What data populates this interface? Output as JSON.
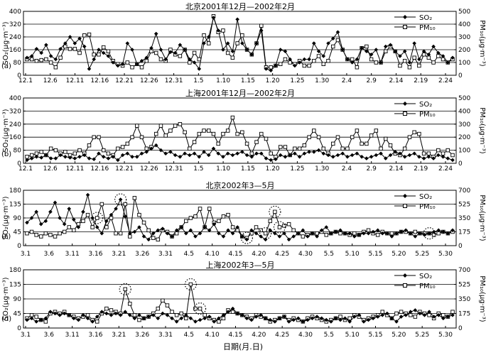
{
  "figure": {
    "xlabel": "日期(月.日)"
  },
  "chart_data": [
    {
      "type": "line",
      "panel_label": "(a)",
      "title": "北京2001年12月—2002年2月",
      "ylabel_left": "SO₂(μg·m⁻³)",
      "ylabel_right": "PM₁₀(μg·m⁻³)",
      "ylim_left": [
        0,
        400
      ],
      "yticks_left": [
        0,
        80,
        160,
        240,
        320,
        400
      ],
      "ylim_right": [
        0,
        500
      ],
      "yticks_right": [
        0,
        100,
        200,
        300,
        400,
        500
      ],
      "x_ticklabels": [
        "12.1",
        "12.6",
        "12.11",
        "12.16",
        "12.21",
        "12.26",
        "12.31",
        "1.5",
        "1.10",
        "1.15",
        "1.20",
        "1.25",
        "1.30",
        "2.4",
        "2.9",
        "2.14",
        "2.19",
        "2.24"
      ],
      "legend": {
        "position": "top-right",
        "entries": [
          "SO₂",
          "PM₁₀"
        ]
      },
      "series": [
        {
          "name": "SO₂",
          "axis": "left",
          "marker": "diamond-filled",
          "values": [
            110,
            120,
            165,
            140,
            190,
            120,
            100,
            165,
            200,
            240,
            200,
            230,
            180,
            40,
            100,
            160,
            140,
            120,
            80,
            60,
            70,
            200,
            160,
            70,
            90,
            110,
            170,
            260,
            160,
            100,
            145,
            140,
            190,
            160,
            100,
            80,
            40,
            200,
            240,
            360,
            280,
            160,
            200,
            150,
            350,
            200,
            160,
            130,
            200,
            280,
            40,
            30,
            60,
            160,
            150,
            100,
            60,
            80,
            100,
            100,
            200,
            150,
            120,
            200,
            230,
            270,
            160,
            100,
            80,
            100,
            170,
            150,
            130,
            160,
            80,
            180,
            190,
            150,
            120,
            150,
            80,
            200,
            100,
            150,
            130,
            180,
            140,
            120,
            80,
            110
          ]
        },
        {
          "name": "PM₁₀",
          "axis": "left",
          "marker": "square-open",
          "values": [
            100,
            100,
            90,
            95,
            100,
            80,
            50,
            110,
            180,
            165,
            165,
            140,
            250,
            255,
            130,
            130,
            175,
            150,
            90,
            70,
            60,
            80,
            50,
            70,
            50,
            90,
            150,
            140,
            100,
            90,
            160,
            130,
            120,
            160,
            80,
            140,
            100,
            250,
            200,
            370,
            270,
            280,
            140,
            110,
            200,
            250,
            160,
            130,
            200,
            310,
            50,
            50,
            60,
            70,
            100,
            80,
            70,
            90,
            60,
            60,
            90,
            120,
            70,
            90,
            180,
            220,
            160,
            100,
            100,
            50,
            170,
            180,
            100,
            80,
            80,
            150,
            180,
            150,
            60,
            90,
            50,
            110,
            60,
            130,
            110,
            80,
            120,
            100,
            80,
            100
          ]
        }
      ]
    },
    {
      "type": "line",
      "panel_label": "(b)",
      "title": "上海2001年12月—2002年2月",
      "ylabel_left": "SO₂(μg·m⁻³)",
      "ylabel_right": "PM₁₀(μg·m⁻³)",
      "ylim_left": [
        0,
        400
      ],
      "yticks_left": [
        0,
        80,
        160,
        240,
        320,
        400
      ],
      "ylim_right": [
        0,
        500
      ],
      "yticks_right": [
        0,
        100,
        200,
        300,
        400,
        500
      ],
      "x_ticklabels": [
        "12.1",
        "12.6",
        "12.11",
        "12.16",
        "12.21",
        "12.26",
        "12.31",
        "1.5",
        "1.10",
        "1.15",
        "1.20",
        "1.25",
        "1.30",
        "2.4",
        "2.9",
        "2.14",
        "2.19",
        "2.24"
      ],
      "legend": {
        "position": "top-right",
        "entries": [
          "SO₂",
          "PM₁₀"
        ]
      },
      "series": [
        {
          "name": "SO₂",
          "axis": "left",
          "marker": "diamond-filled",
          "values": [
            20,
            30,
            40,
            35,
            50,
            30,
            30,
            50,
            40,
            35,
            30,
            40,
            50,
            30,
            25,
            60,
            40,
            30,
            40,
            20,
            50,
            60,
            40,
            40,
            60,
            70,
            90,
            110,
            80,
            60,
            70,
            50,
            40,
            60,
            50,
            60,
            40,
            70,
            50,
            90,
            60,
            40,
            60,
            50,
            60,
            70,
            50,
            40,
            60,
            60,
            30,
            20,
            25,
            50,
            40,
            50,
            60,
            40,
            60,
            70,
            70,
            80,
            60,
            50,
            40,
            50,
            60,
            40,
            50,
            60,
            40,
            30,
            40,
            50,
            60,
            30,
            50,
            70,
            60,
            40,
            50,
            60,
            40,
            30,
            40,
            30,
            50,
            40,
            30,
            20
          ]
        },
        {
          "name": "PM₁₀",
          "axis": "left",
          "marker": "square-open",
          "values": [
            40,
            50,
            60,
            70,
            50,
            90,
            80,
            60,
            70,
            50,
            60,
            80,
            60,
            110,
            160,
            160,
            80,
            60,
            50,
            90,
            100,
            120,
            160,
            230,
            160,
            90,
            100,
            180,
            230,
            170,
            200,
            230,
            240,
            190,
            90,
            130,
            180,
            200,
            200,
            180,
            120,
            180,
            200,
            280,
            180,
            190,
            120,
            60,
            130,
            180,
            150,
            60,
            40,
            100,
            100,
            50,
            90,
            90,
            110,
            160,
            200,
            160,
            90,
            60,
            120,
            160,
            90,
            90,
            160,
            200,
            120,
            120,
            170,
            200,
            90,
            150,
            110,
            60,
            50,
            90,
            160,
            190,
            180,
            60,
            60,
            40,
            80,
            60,
            80,
            50
          ]
        }
      ]
    },
    {
      "type": "line",
      "panel_label": "(c)",
      "title": "北京2002年3—5月",
      "ylabel_left": "SO₂(μg·m⁻³)",
      "ylabel_right": "PM₁₀(μg·m⁻³)",
      "ylim_left": [
        0,
        180
      ],
      "yticks_left": [
        0,
        45,
        90,
        135,
        180
      ],
      "ylim_right": [
        0,
        700
      ],
      "yticks_right": [
        0,
        175,
        350,
        525,
        700
      ],
      "x_ticklabels": [
        "3.1",
        "3.6",
        "3.11",
        "3.16",
        "3.21",
        "3.26",
        "3.31",
        "4.5",
        "4.10",
        "4.15",
        "4.20",
        "4.25",
        "4.30",
        "5.5",
        "5.10",
        "5.15",
        "5.20",
        "5.25",
        "5.30"
      ],
      "legend": {
        "position": "top-right",
        "entries": [
          "SO₂",
          "PM₁₀"
        ]
      },
      "series": [
        {
          "name": "SO₂",
          "axis": "left",
          "marker": "diamond-filled",
          "values": [
            75,
            90,
            110,
            70,
            80,
            110,
            140,
            90,
            70,
            120,
            85,
            60,
            110,
            165,
            90,
            60,
            40,
            80,
            100,
            120,
            150,
            95,
            40,
            45,
            60,
            30,
            20,
            40,
            50,
            55,
            40,
            30,
            50,
            60,
            40,
            50,
            30,
            40,
            60,
            50,
            70,
            40,
            30,
            50,
            40,
            60,
            30,
            20,
            50,
            40,
            30,
            20,
            50,
            40,
            30,
            40,
            20,
            30,
            40,
            50,
            30,
            40,
            30,
            50,
            60,
            40,
            45,
            50,
            40,
            40,
            30,
            35,
            40,
            40,
            45,
            50,
            40,
            40,
            30,
            40,
            45,
            50,
            40,
            30,
            40,
            35,
            40,
            45,
            50,
            45,
            40,
            50
          ]
        },
        {
          "name": "PM₁₀",
          "axis": "left",
          "marker": "square-open",
          "values": [
            40,
            45,
            35,
            30,
            40,
            35,
            30,
            40,
            45,
            60,
            50,
            70,
            80,
            100,
            60,
            90,
            135,
            60,
            90,
            40,
            40,
            135,
            30,
            155,
            100,
            75,
            50,
            25,
            20,
            50,
            45,
            30,
            40,
            60,
            80,
            90,
            95,
            120,
            60,
            120,
            75,
            80,
            95,
            100,
            60,
            50,
            30,
            25,
            40,
            60,
            50,
            40,
            80,
            110,
            60,
            65,
            70,
            50,
            40,
            30,
            35,
            40,
            40,
            45,
            35,
            40,
            45,
            40,
            40,
            35,
            40,
            35,
            45,
            50,
            40,
            35,
            45,
            40,
            40,
            40,
            45,
            45,
            40,
            45,
            40,
            40,
            40,
            35,
            40,
            45,
            40,
            45
          ]
        }
      ],
      "annotations": [
        "dotted-circles marking peak points"
      ]
    },
    {
      "type": "line",
      "panel_label": "(d)",
      "title": "上海2002年3—5月",
      "ylabel_left": "SO₂(μg·m⁻³)",
      "ylabel_right": "PM₁₀(μg·m⁻³)",
      "ylim_left": [
        0,
        180
      ],
      "yticks_left": [
        0,
        45,
        90,
        135,
        180
      ],
      "ylim_right": [
        0,
        700
      ],
      "yticks_right": [
        0,
        175,
        350,
        525,
        700
      ],
      "x_ticklabels": [
        "3.1",
        "3.6",
        "3.11",
        "3.16",
        "3.21",
        "3.26",
        "3.31",
        "4.5",
        "4.10",
        "4.15",
        "4.20",
        "4.25",
        "4.30",
        "5.5",
        "5.10",
        "5.15",
        "5.20",
        "5.25",
        "5.30"
      ],
      "legend": {
        "position": "top-right",
        "entries": [
          "SO₂",
          "PM₁₀"
        ]
      },
      "series": [
        {
          "name": "SO₂",
          "axis": "left",
          "marker": "diamond-filled",
          "values": [
            25,
            30,
            20,
            25,
            30,
            50,
            45,
            40,
            45,
            40,
            30,
            25,
            40,
            30,
            20,
            35,
            50,
            45,
            40,
            45,
            40,
            50,
            40,
            30,
            40,
            30,
            35,
            40,
            30,
            45,
            40,
            30,
            20,
            30,
            40,
            30,
            20,
            25,
            30,
            35,
            20,
            30,
            40,
            50,
            60,
            45,
            40,
            30,
            25,
            35,
            40,
            30,
            25,
            20,
            30,
            35,
            20,
            25,
            30,
            20,
            25,
            30,
            35,
            30,
            25,
            20,
            30,
            25,
            30,
            20,
            35,
            40,
            20,
            25,
            30,
            35,
            40,
            45,
            30,
            20,
            35,
            40,
            50,
            55,
            45,
            40,
            50,
            35,
            40,
            30,
            35,
            40
          ]
        },
        {
          "name": "PM₁₀",
          "axis": "left",
          "marker": "square-open",
          "values": [
            30,
            40,
            35,
            25,
            20,
            45,
            50,
            45,
            50,
            40,
            35,
            30,
            35,
            40,
            25,
            20,
            45,
            60,
            55,
            50,
            45,
            120,
            75,
            40,
            25,
            30,
            35,
            45,
            60,
            85,
            70,
            50,
            40,
            45,
            30,
            135,
            60,
            60,
            40,
            30,
            25,
            20,
            30,
            55,
            50,
            45,
            40,
            35,
            30,
            40,
            35,
            30,
            20,
            25,
            30,
            35,
            25,
            30,
            25,
            20,
            30,
            35,
            30,
            25,
            20,
            25,
            30,
            35,
            25,
            30,
            40,
            35,
            25,
            30,
            35,
            40,
            50,
            40,
            30,
            45,
            50,
            45,
            40,
            35,
            50,
            45,
            40,
            30,
            45,
            40,
            35,
            50
          ]
        }
      ],
      "annotations": [
        "dotted-circles marking peak points"
      ]
    }
  ]
}
